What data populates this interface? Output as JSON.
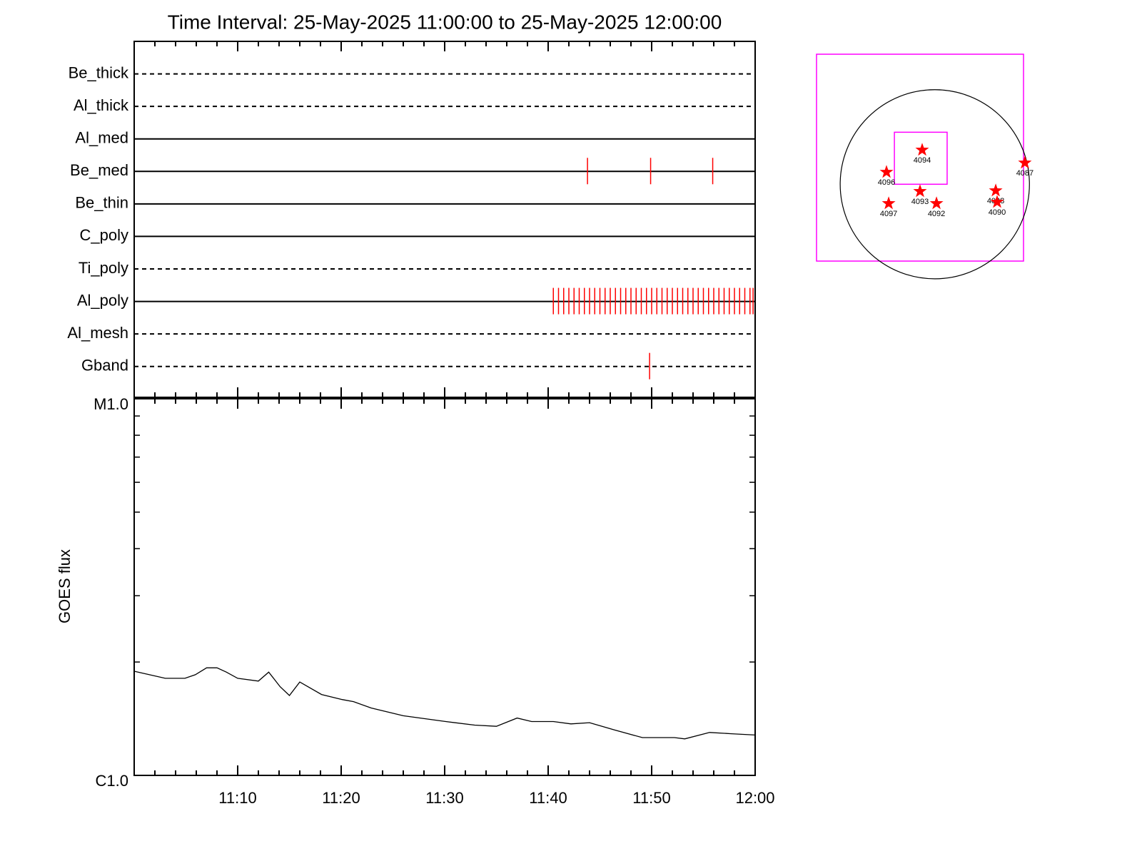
{
  "chart_data": [
    {
      "type": "timeline",
      "title": "Time Interval: 25-May-2025 11:00:00 to 25-May-2025 12:00:00",
      "categories": [
        "Be_thick",
        "Al_thick",
        "Al_med",
        "Be_med",
        "Be_thin",
        "C_poly",
        "Ti_poly",
        "Al_poly",
        "Al_mesh",
        "Gband"
      ],
      "line_styles": [
        "dashed",
        "dashed",
        "solid",
        "solid",
        "solid",
        "solid",
        "dashed",
        "solid",
        "dashed",
        "dashed"
      ],
      "events": [
        [],
        [],
        [],
        [
          43.8,
          49.9,
          55.9
        ],
        [],
        [],
        [],
        [
          40.5,
          41.0,
          41.5,
          42.0,
          42.5,
          43.0,
          43.5,
          44.0,
          44.5,
          45.0,
          45.5,
          46.0,
          46.5,
          47.0,
          47.5,
          48.0,
          48.5,
          49.0,
          49.5,
          50.0,
          50.5,
          51.0,
          51.5,
          52.0,
          52.5,
          53.0,
          53.5,
          54.0,
          54.5,
          55.0,
          55.5,
          56.0,
          56.5,
          57.0,
          57.5,
          58.0,
          58.5,
          59.0,
          59.5,
          59.8
        ],
        [],
        [
          49.8
        ]
      ],
      "event_color": "#ff0000",
      "xlim": [
        0,
        60
      ],
      "xticks": [
        10,
        20,
        30,
        40,
        50,
        60
      ],
      "xminorticks": [
        2,
        4,
        6,
        8,
        12,
        14,
        16,
        18,
        22,
        24,
        26,
        28,
        32,
        34,
        36,
        38,
        42,
        44,
        46,
        48,
        52,
        54,
        56,
        58
      ]
    },
    {
      "type": "line",
      "y_label": "GOES flux",
      "log_scale": true,
      "color": "#000000",
      "x": [
        0,
        3.0,
        4.9,
        5.9,
        7.0,
        8.0,
        8.9,
        10.0,
        12.0,
        13.0,
        14.1,
        15.0,
        16.0,
        18.1,
        20.1,
        21.2,
        22.9,
        26.0,
        30.1,
        32.9,
        35.0,
        37.0,
        38.4,
        40.5,
        42.2,
        44.0,
        46.4,
        49.1,
        52.2,
        53.2,
        55.6,
        57.7,
        60.0
      ],
      "values": [
        1.89e-06,
        1.81e-06,
        1.81e-06,
        1.85e-06,
        1.93e-06,
        1.93e-06,
        1.88e-06,
        1.81e-06,
        1.78e-06,
        1.88e-06,
        1.72e-06,
        1.63e-06,
        1.77e-06,
        1.64e-06,
        1.59e-06,
        1.57e-06,
        1.51e-06,
        1.44e-06,
        1.39e-06,
        1.36e-06,
        1.35e-06,
        1.42e-06,
        1.39e-06,
        1.39e-06,
        1.37e-06,
        1.38e-06,
        1.32e-06,
        1.26e-06,
        1.26e-06,
        1.25e-06,
        1.3e-06,
        1.29e-06,
        1.28e-06
      ],
      "xlim": [
        0,
        60
      ],
      "xticks": [
        {
          "value": 10,
          "label": "11:10"
        },
        {
          "value": 20,
          "label": "11:20"
        },
        {
          "value": 30,
          "label": "11:30"
        },
        {
          "value": 40,
          "label": "11:40"
        },
        {
          "value": 50,
          "label": "11:50"
        },
        {
          "value": 60,
          "label": "12:00"
        }
      ],
      "xminorticks": [
        2,
        4,
        6,
        8,
        12,
        14,
        16,
        18,
        22,
        24,
        26,
        28,
        32,
        34,
        36,
        38,
        42,
        44,
        46,
        48,
        52,
        54,
        56,
        58
      ],
      "ylim": [
        1e-06,
        1e-05
      ],
      "yticks": [
        {
          "value": 1e-05,
          "label": "M1.0"
        },
        {
          "value": 1e-06,
          "label": "C1.0"
        }
      ],
      "yminorticks": [
        2e-06,
        3e-06,
        4e-06,
        5e-06,
        6e-06,
        7e-06,
        8e-06,
        9e-06
      ]
    },
    {
      "type": "map",
      "xlim": [
        -1200,
        900
      ],
      "ylim": [
        -780,
        1320
      ],
      "solar_radius": 960,
      "frame_color": "#ff00ff",
      "boxes": [
        {
          "x": [
            -410,
            125
          ],
          "y": [
            0,
            528
          ]
        }
      ],
      "star_color": "#ff0000",
      "names": [
        "4094",
        "4096",
        "4093",
        "4092",
        "4097",
        "4098",
        "4090",
        "4087"
      ],
      "x": [
        -128,
        -490,
        -150,
        17,
        -468,
        618,
        632,
        914
      ],
      "y": [
        348,
        123,
        -72,
        -195,
        -195,
        -65,
        -181,
        217
      ]
    }
  ]
}
